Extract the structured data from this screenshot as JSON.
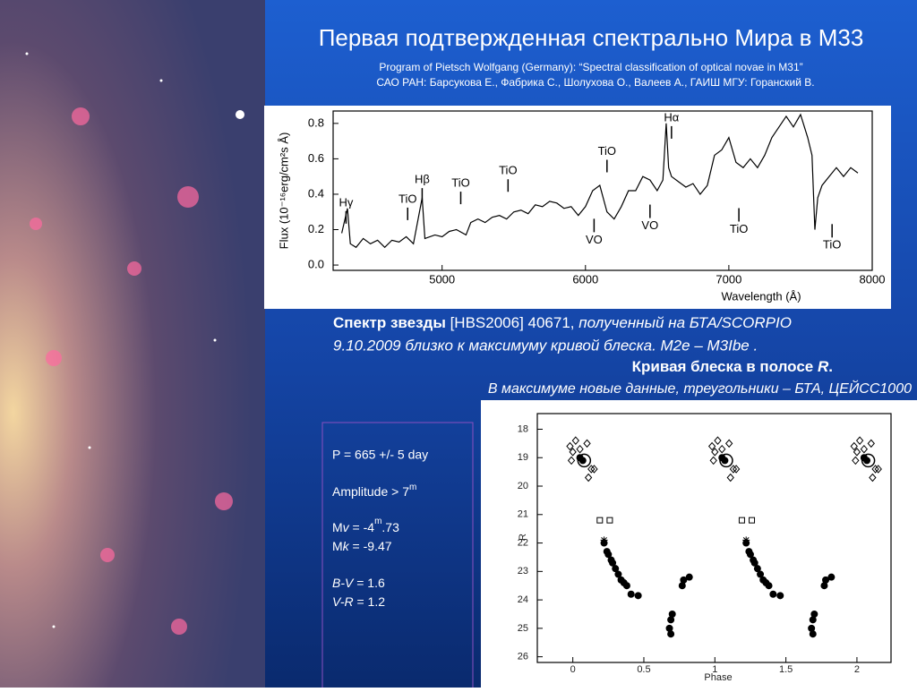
{
  "title": "Первая подтвержденная спектрально Мира в М33",
  "subtitle": [
    "Program of Pietsch Wolfgang (Germany):  “Spectral classification of optical novae in M31”",
    "САО РАН: Барсукова Е., Фабрика С., Шолухова О., Валеев А., ГАИШ МГУ: Горанский В."
  ],
  "caption": {
    "line1": [
      "Спектр звезды",
      " [HBS2006] 40671, ",
      "полученный на БТА/SCORPIO"
    ],
    "line2": "9.10.2009  близко к максимуму кривой блеска.  M2e – M3Ibe .",
    "line3": [
      "Кривая блеска в полосе  ",
      "R",
      "."
    ],
    "line4": "В максимуме новые данные, треугольники – БТА, ЦЕЙСС1000"
  },
  "params": {
    "period": "P = 665 +/- 5 day",
    "amplitude": [
      "Amplitude > 7",
      "m"
    ],
    "mv": [
      "M",
      "v",
      " = -4",
      "m",
      ".73"
    ],
    "mk": [
      "M",
      "k",
      " = -9.47"
    ],
    "bv": [
      "B-V",
      " = 1.6"
    ],
    "vr": [
      "V-R",
      " = 1.2"
    ]
  },
  "chart_data": [
    {
      "type": "line",
      "xlabel": "Wavelength (Å)",
      "ylabel": "Flux (10⁻¹⁶erg/cm²s Å)",
      "color": "#000000",
      "xlim": [
        4240,
        8000
      ],
      "xticks": [
        5000,
        6000,
        7000,
        8000
      ],
      "ylim": [
        -0.03,
        0.87
      ],
      "yticks": [
        {
          "value": 0,
          "label": "0.0"
        },
        {
          "value": 0.2,
          "label": "0.2"
        },
        {
          "value": 0.4,
          "label": "0.4"
        },
        {
          "value": 0.6,
          "label": "0.6"
        },
        {
          "value": 0.8,
          "label": "0.8"
        }
      ],
      "x": [
        4300,
        4340,
        4360,
        4400,
        4450,
        4500,
        4550,
        4600,
        4650,
        4700,
        4750,
        4800,
        4861,
        4880,
        4950,
        5000,
        5050,
        5100,
        5167,
        5200,
        5250,
        5300,
        5350,
        5400,
        5450,
        5500,
        5550,
        5600,
        5650,
        5700,
        5750,
        5800,
        5850,
        5900,
        5950,
        6000,
        6050,
        6100,
        6150,
        6200,
        6250,
        6300,
        6350,
        6400,
        6450,
        6500,
        6540,
        6563,
        6580,
        6600,
        6650,
        6700,
        6750,
        6800,
        6850,
        6900,
        6950,
        7000,
        7050,
        7100,
        7150,
        7200,
        7250,
        7300,
        7350,
        7400,
        7450,
        7500,
        7550,
        7580,
        7600,
        7620,
        7650,
        7700,
        7750,
        7800,
        7850,
        7900
      ],
      "values": [
        0.18,
        0.32,
        0.12,
        0.1,
        0.15,
        0.12,
        0.14,
        0.1,
        0.14,
        0.13,
        0.16,
        0.12,
        0.38,
        0.15,
        0.17,
        0.16,
        0.19,
        0.2,
        0.17,
        0.24,
        0.26,
        0.24,
        0.27,
        0.28,
        0.26,
        0.3,
        0.31,
        0.29,
        0.34,
        0.33,
        0.36,
        0.35,
        0.32,
        0.33,
        0.28,
        0.33,
        0.42,
        0.45,
        0.3,
        0.26,
        0.33,
        0.42,
        0.42,
        0.5,
        0.48,
        0.42,
        0.48,
        0.8,
        0.55,
        0.5,
        0.47,
        0.44,
        0.46,
        0.4,
        0.45,
        0.62,
        0.65,
        0.72,
        0.58,
        0.55,
        0.6,
        0.55,
        0.62,
        0.72,
        0.78,
        0.84,
        0.78,
        0.85,
        0.72,
        0.62,
        0.2,
        0.38,
        0.45,
        0.5,
        0.55,
        0.5,
        0.55,
        0.52
      ],
      "annotations": [
        {
          "label": "Hγ",
          "x": 4330,
          "y": 0.35
        },
        {
          "label": "TiO",
          "x": 4760,
          "y": 0.37
        },
        {
          "label": "Hβ",
          "x": 4861,
          "y": 0.48
        },
        {
          "label": "TiO",
          "x": 5130,
          "y": 0.46
        },
        {
          "label": "TiO",
          "x": 5460,
          "y": 0.53
        },
        {
          "label": "TiO",
          "x": 6150,
          "y": 0.64
        },
        {
          "label": "VO",
          "x": 6060,
          "y": 0.14
        },
        {
          "label": "VO",
          "x": 6450,
          "y": 0.22
        },
        {
          "label": "Hα",
          "x": 6600,
          "y": 0.83
        },
        {
          "label": "TiO",
          "x": 7070,
          "y": 0.2
        },
        {
          "label": "TiO",
          "x": 7720,
          "y": 0.11
        }
      ]
    },
    {
      "type": "scatter",
      "xlabel": "Phase",
      "ylabel": "R",
      "xlim": [
        -0.25,
        2.24
      ],
      "xticks": [
        0,
        0.5,
        1,
        1.5,
        2
      ],
      "ylim": [
        26.2,
        17.45
      ],
      "yticks": [
        18,
        19,
        20,
        21,
        22,
        23,
        24,
        25,
        26
      ],
      "series": [
        {
          "marker": "filled-circle",
          "color": "#000000",
          "x": [
            0.05,
            0.07,
            0.22,
            0.24,
            0.25,
            0.27,
            0.28,
            0.3,
            0.32,
            0.34,
            0.36,
            0.38,
            0.41,
            0.46,
            0.68,
            0.69,
            0.7,
            0.69,
            0.77,
            0.78,
            0.82,
            1.05,
            1.07,
            1.22,
            1.24,
            1.25,
            1.27,
            1.28,
            1.3,
            1.32,
            1.34,
            1.36,
            1.38,
            1.41,
            1.46,
            1.68,
            1.69,
            1.7,
            1.69,
            1.77,
            1.78,
            1.82,
            2.05,
            2.07
          ],
          "values": [
            19.0,
            19.1,
            22.0,
            22.3,
            22.4,
            22.6,
            22.7,
            22.9,
            23.1,
            23.3,
            23.4,
            23.5,
            23.8,
            23.85,
            25.0,
            24.7,
            24.5,
            25.2,
            23.5,
            23.3,
            23.2,
            19.0,
            19.1,
            22.0,
            22.3,
            22.4,
            22.6,
            22.7,
            22.9,
            23.1,
            23.3,
            23.4,
            23.5,
            23.8,
            23.85,
            25.0,
            24.7,
            24.5,
            25.2,
            23.5,
            23.3,
            23.2,
            19.0,
            19.1
          ]
        },
        {
          "marker": "open-diamond",
          "color": "#000000",
          "x": [
            -0.02,
            0.0,
            -0.01,
            0.02,
            0.05,
            0.1,
            0.13,
            0.15,
            0.11,
            0.98,
            1.0,
            0.99,
            1.02,
            1.05,
            1.1,
            1.13,
            1.15,
            1.11,
            1.98,
            2.0,
            1.99,
            2.02,
            2.05,
            2.1,
            2.13,
            2.15,
            2.11
          ],
          "values": [
            18.6,
            18.8,
            19.1,
            18.4,
            18.7,
            18.5,
            19.4,
            19.4,
            19.7,
            18.6,
            18.8,
            19.1,
            18.4,
            18.7,
            18.5,
            19.4,
            19.4,
            19.7,
            18.6,
            18.8,
            19.1,
            18.4,
            18.7,
            18.5,
            19.4,
            19.4,
            19.7
          ]
        },
        {
          "marker": "open-square",
          "color": "#000000",
          "x": [
            0.19,
            0.26,
            1.19,
            1.26
          ],
          "values": [
            21.2,
            21.2,
            21.2,
            21.2
          ]
        },
        {
          "marker": "big-circle",
          "color": "#000000",
          "x": [
            0.08,
            1.08,
            2.08
          ],
          "values": [
            19.1,
            19.1,
            19.1
          ]
        },
        {
          "marker": "asterisk",
          "color": "#000000",
          "x": [
            0.22,
            1.22
          ],
          "values": [
            21.9,
            21.9
          ]
        }
      ]
    }
  ]
}
